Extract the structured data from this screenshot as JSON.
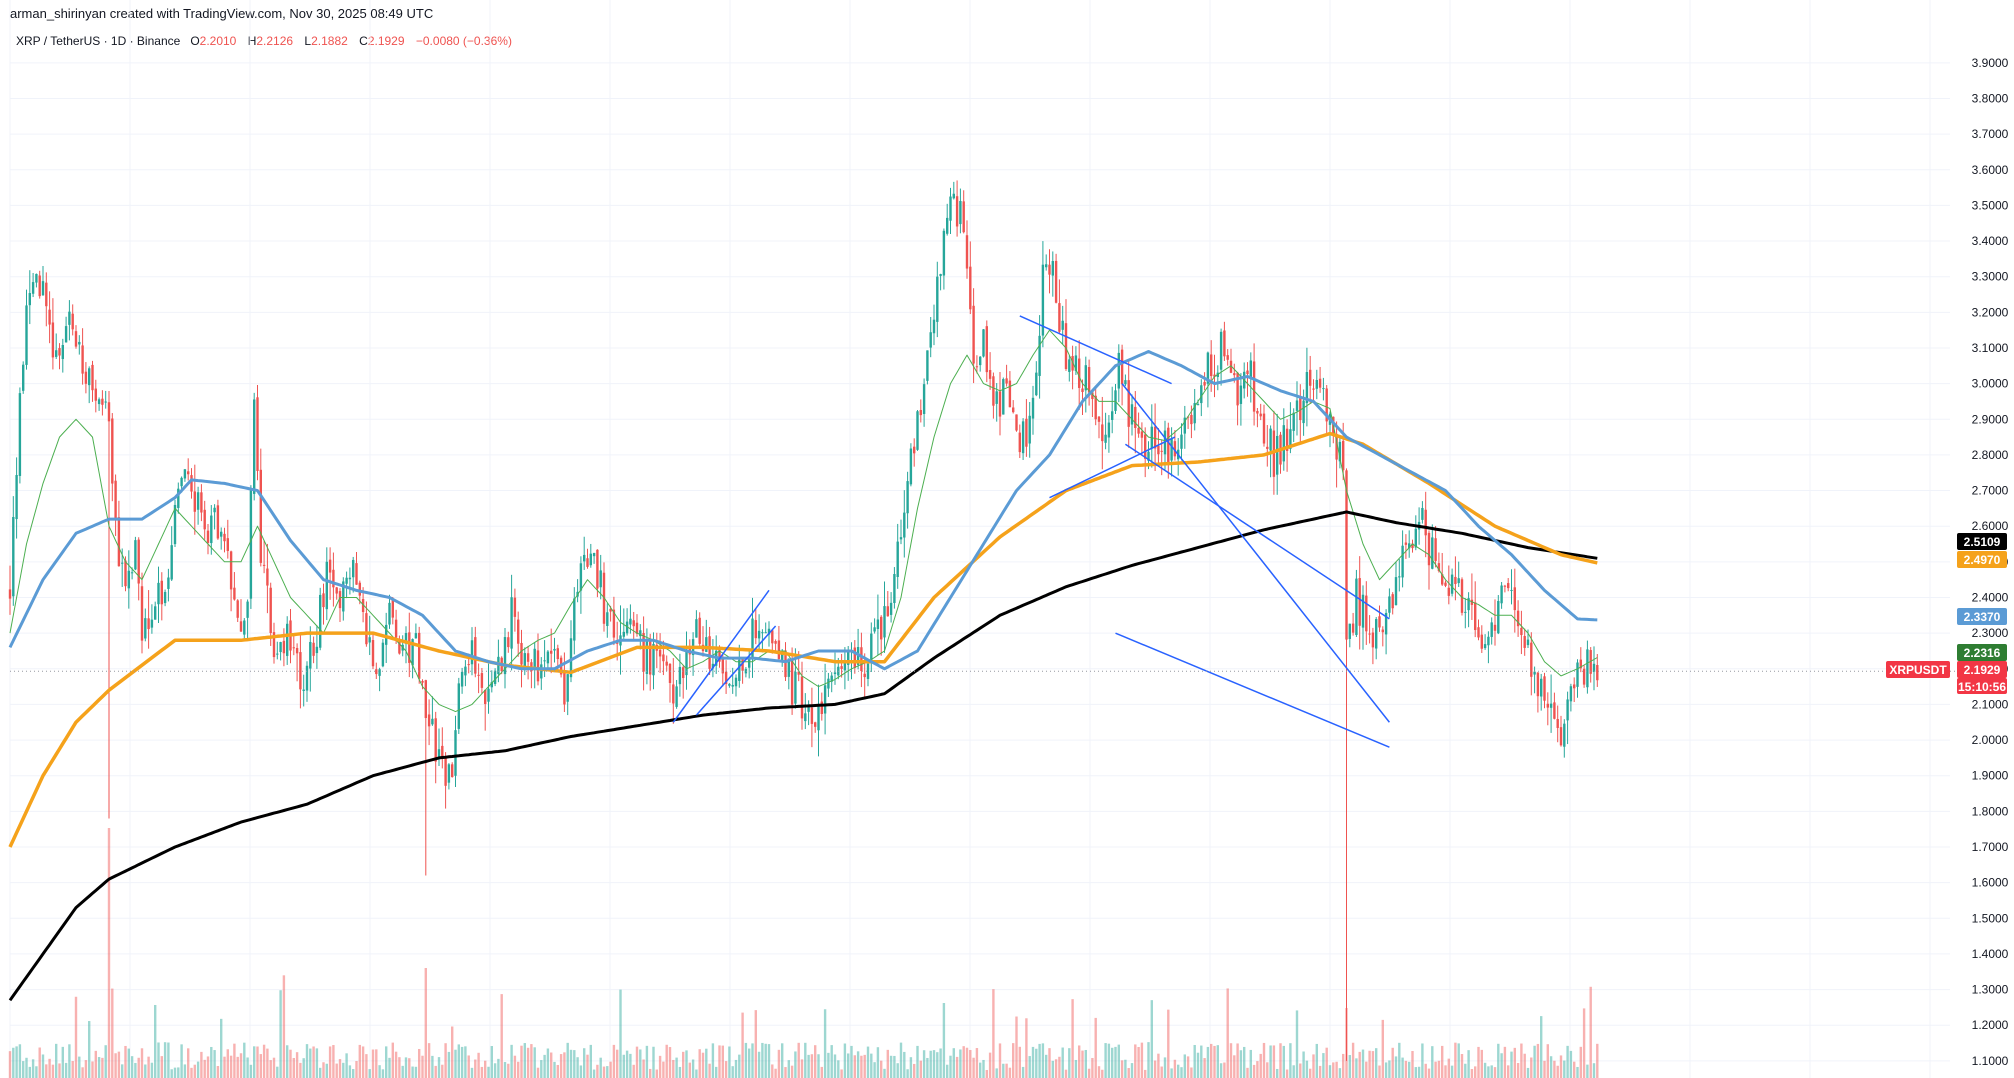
{
  "credit": "arman_shirinyan created with TradingView.com, Nov 30, 2025 08:49 UTC",
  "legend": {
    "symbol": "XRP / TetherUS · 1D · Binance",
    "open_label": "O",
    "open": "2.2010",
    "high_label": "H",
    "high": "2.2126",
    "low_label": "L",
    "low": "2.1882",
    "close_label": "C",
    "close": "2.1929",
    "change": "−0.0080 (−0.36%)"
  },
  "colors": {
    "up": "#26a69a",
    "down": "#ef5350",
    "ma_short": "#4caf50",
    "ma_mid": "#5b9bd5",
    "ma_long": "#f5a21b",
    "ma_200": "#000000",
    "trendline": "#2962ff",
    "grid": "#f0f3fa",
    "axis_text": "#131722"
  },
  "chart_data": {
    "type": "candlestick",
    "symbol": "XRPUSDT",
    "ylim": [
      1.08,
      3.95
    ],
    "y_ticks": [
      "3.9000",
      "3.8000",
      "3.7000",
      "3.6000",
      "3.5000",
      "3.4000",
      "3.3000",
      "3.2000",
      "3.1000",
      "3.0000",
      "2.9000",
      "2.8000",
      "2.7000",
      "2.6000",
      "2.5000",
      "2.4000",
      "2.3000",
      "2.2000",
      "2.1000",
      "2.0000",
      "1.9000",
      "1.8000",
      "1.7000",
      "1.6000",
      "1.5000",
      "1.4000",
      "1.3000",
      "1.2000",
      "1.1000"
    ],
    "price_anchors": [
      [
        0,
        2.42
      ],
      [
        3,
        2.95
      ],
      [
        6,
        3.28
      ],
      [
        10,
        3.25
      ],
      [
        14,
        3.05
      ],
      [
        18,
        3.18
      ],
      [
        22,
        3.05
      ],
      [
        26,
        2.95
      ],
      [
        30,
        2.9
      ],
      [
        32,
        2.6
      ],
      [
        35,
        2.4
      ],
      [
        38,
        2.55
      ],
      [
        40,
        2.3
      ],
      [
        44,
        2.35
      ],
      [
        48,
        2.5
      ],
      [
        52,
        2.75
      ],
      [
        56,
        2.7
      ],
      [
        60,
        2.55
      ],
      [
        64,
        2.62
      ],
      [
        67,
        2.45
      ],
      [
        70,
        2.3
      ],
      [
        72,
        2.4
      ],
      [
        74,
        2.95
      ],
      [
        76,
        2.55
      ],
      [
        80,
        2.25
      ],
      [
        84,
        2.3
      ],
      [
        88,
        2.18
      ],
      [
        92,
        2.25
      ],
      [
        96,
        2.45
      ],
      [
        100,
        2.4
      ],
      [
        104,
        2.5
      ],
      [
        108,
        2.3
      ],
      [
        112,
        2.18
      ],
      [
        115,
        2.4
      ],
      [
        118,
        2.2
      ],
      [
        122,
        2.3
      ],
      [
        126,
        2.1
      ],
      [
        130,
        1.95
      ],
      [
        134,
        1.9
      ],
      [
        136,
        2.15
      ],
      [
        140,
        2.25
      ],
      [
        144,
        2.1
      ],
      [
        148,
        2.2
      ],
      [
        152,
        2.35
      ],
      [
        156,
        2.25
      ],
      [
        160,
        2.2
      ],
      [
        164,
        2.3
      ],
      [
        168,
        2.15
      ],
      [
        172,
        2.4
      ],
      [
        176,
        2.55
      ],
      [
        180,
        2.38
      ],
      [
        184,
        2.3
      ],
      [
        188,
        2.35
      ],
      [
        192,
        2.25
      ],
      [
        196,
        2.22
      ],
      [
        200,
        2.15
      ],
      [
        204,
        2.2
      ],
      [
        208,
        2.3
      ],
      [
        212,
        2.25
      ],
      [
        216,
        2.22
      ],
      [
        220,
        2.15
      ],
      [
        224,
        2.25
      ],
      [
        228,
        2.35
      ],
      [
        232,
        2.25
      ],
      [
        236,
        2.18
      ],
      [
        240,
        2.12
      ],
      [
        244,
        2.05
      ],
      [
        248,
        2.18
      ],
      [
        252,
        2.25
      ],
      [
        256,
        2.2
      ],
      [
        260,
        2.25
      ],
      [
        264,
        2.3
      ],
      [
        268,
        2.45
      ],
      [
        272,
        2.75
      ],
      [
        276,
        2.95
      ],
      [
        280,
        3.15
      ],
      [
        283,
        3.45
      ],
      [
        286,
        3.55
      ],
      [
        289,
        3.4
      ],
      [
        292,
        3.05
      ],
      [
        295,
        3.1
      ],
      [
        298,
        2.95
      ],
      [
        302,
        2.95
      ],
      [
        306,
        2.8
      ],
      [
        310,
        2.95
      ],
      [
        313,
        3.3
      ],
      [
        316,
        3.3
      ],
      [
        320,
        3.1
      ],
      [
        324,
        3.05
      ],
      [
        328,
        2.95
      ],
      [
        332,
        2.88
      ],
      [
        336,
        3.05
      ],
      [
        340,
        2.9
      ],
      [
        344,
        2.82
      ],
      [
        348,
        2.85
      ],
      [
        352,
        2.82
      ],
      [
        356,
        2.85
      ],
      [
        360,
        2.95
      ],
      [
        364,
        3.05
      ],
      [
        368,
        3.1
      ],
      [
        372,
        2.98
      ],
      [
        376,
        3.0
      ],
      [
        380,
        2.85
      ],
      [
        384,
        2.8
      ],
      [
        388,
        2.85
      ],
      [
        392,
        2.95
      ],
      [
        396,
        3.0
      ],
      [
        400,
        2.9
      ],
      [
        404,
        2.82
      ],
      [
        405,
        2.3
      ],
      [
        408,
        2.4
      ],
      [
        412,
        2.3
      ],
      [
        416,
        2.35
      ],
      [
        420,
        2.45
      ],
      [
        424,
        2.55
      ],
      [
        428,
        2.6
      ],
      [
        432,
        2.5
      ],
      [
        436,
        2.45
      ],
      [
        440,
        2.4
      ],
      [
        444,
        2.3
      ],
      [
        448,
        2.25
      ],
      [
        452,
        2.45
      ],
      [
        456,
        2.38
      ],
      [
        460,
        2.25
      ],
      [
        464,
        2.15
      ],
      [
        468,
        2.05
      ],
      [
        470,
        1.95
      ],
      [
        472,
        2.1
      ],
      [
        475,
        2.2
      ],
      [
        478,
        2.21
      ],
      [
        481,
        2.19
      ]
    ],
    "special_wicks": [
      {
        "i": 405,
        "low": 1.1,
        "high": 2.65
      },
      {
        "i": 30,
        "low": 1.78,
        "high": 2.6
      },
      {
        "i": 126,
        "low": 1.62,
        "high": 2.05
      }
    ],
    "ma_200": [
      [
        0,
        1.27
      ],
      [
        10,
        1.4
      ],
      [
        20,
        1.53
      ],
      [
        30,
        1.61
      ],
      [
        50,
        1.7
      ],
      [
        70,
        1.77
      ],
      [
        90,
        1.82
      ],
      [
        110,
        1.9
      ],
      [
        130,
        1.95
      ],
      [
        150,
        1.97
      ],
      [
        170,
        2.01
      ],
      [
        190,
        2.04
      ],
      [
        210,
        2.07
      ],
      [
        230,
        2.09
      ],
      [
        250,
        2.1
      ],
      [
        265,
        2.13
      ],
      [
        280,
        2.23
      ],
      [
        300,
        2.35
      ],
      [
        320,
        2.43
      ],
      [
        340,
        2.49
      ],
      [
        360,
        2.54
      ],
      [
        380,
        2.59
      ],
      [
        400,
        2.63
      ],
      [
        405,
        2.64
      ],
      [
        420,
        2.61
      ],
      [
        440,
        2.58
      ],
      [
        460,
        2.54
      ],
      [
        481,
        2.51
      ]
    ],
    "ma_long": [
      [
        0,
        1.7
      ],
      [
        10,
        1.9
      ],
      [
        20,
        2.05
      ],
      [
        30,
        2.14
      ],
      [
        50,
        2.28
      ],
      [
        70,
        2.28
      ],
      [
        90,
        2.3
      ],
      [
        110,
        2.3
      ],
      [
        130,
        2.25
      ],
      [
        150,
        2.21
      ],
      [
        170,
        2.19
      ],
      [
        190,
        2.26
      ],
      [
        210,
        2.26
      ],
      [
        230,
        2.25
      ],
      [
        250,
        2.22
      ],
      [
        265,
        2.22
      ],
      [
        280,
        2.4
      ],
      [
        300,
        2.57
      ],
      [
        320,
        2.7
      ],
      [
        340,
        2.77
      ],
      [
        360,
        2.78
      ],
      [
        380,
        2.8
      ],
      [
        400,
        2.86
      ],
      [
        410,
        2.83
      ],
      [
        430,
        2.72
      ],
      [
        450,
        2.6
      ],
      [
        470,
        2.52
      ],
      [
        481,
        2.497
      ]
    ],
    "ma_mid": [
      [
        0,
        2.26
      ],
      [
        10,
        2.45
      ],
      [
        20,
        2.58
      ],
      [
        30,
        2.62
      ],
      [
        40,
        2.62
      ],
      [
        50,
        2.68
      ],
      [
        55,
        2.73
      ],
      [
        65,
        2.72
      ],
      [
        75,
        2.7
      ],
      [
        85,
        2.56
      ],
      [
        95,
        2.45
      ],
      [
        105,
        2.42
      ],
      [
        115,
        2.4
      ],
      [
        125,
        2.35
      ],
      [
        135,
        2.25
      ],
      [
        145,
        2.22
      ],
      [
        155,
        2.2
      ],
      [
        165,
        2.2
      ],
      [
        175,
        2.25
      ],
      [
        185,
        2.28
      ],
      [
        195,
        2.28
      ],
      [
        205,
        2.25
      ],
      [
        215,
        2.23
      ],
      [
        225,
        2.23
      ],
      [
        235,
        2.22
      ],
      [
        245,
        2.25
      ],
      [
        255,
        2.25
      ],
      [
        265,
        2.2
      ],
      [
        275,
        2.25
      ],
      [
        285,
        2.4
      ],
      [
        295,
        2.55
      ],
      [
        305,
        2.7
      ],
      [
        315,
        2.8
      ],
      [
        325,
        2.95
      ],
      [
        335,
        3.05
      ],
      [
        345,
        3.09
      ],
      [
        355,
        3.05
      ],
      [
        365,
        3.0
      ],
      [
        375,
        3.02
      ],
      [
        385,
        2.98
      ],
      [
        395,
        2.95
      ],
      [
        405,
        2.85
      ],
      [
        415,
        2.8
      ],
      [
        425,
        2.75
      ],
      [
        435,
        2.7
      ],
      [
        445,
        2.6
      ],
      [
        455,
        2.52
      ],
      [
        465,
        2.42
      ],
      [
        475,
        2.34
      ],
      [
        481,
        2.337
      ]
    ],
    "ma_short": [
      [
        0,
        2.3
      ],
      [
        5,
        2.55
      ],
      [
        10,
        2.72
      ],
      [
        15,
        2.85
      ],
      [
        20,
        2.9
      ],
      [
        25,
        2.85
      ],
      [
        30,
        2.6
      ],
      [
        35,
        2.5
      ],
      [
        40,
        2.45
      ],
      [
        45,
        2.55
      ],
      [
        50,
        2.65
      ],
      [
        55,
        2.6
      ],
      [
        60,
        2.55
      ],
      [
        65,
        2.5
      ],
      [
        70,
        2.5
      ],
      [
        75,
        2.6
      ],
      [
        80,
        2.5
      ],
      [
        85,
        2.4
      ],
      [
        90,
        2.35
      ],
      [
        95,
        2.3
      ],
      [
        100,
        2.4
      ],
      [
        105,
        2.4
      ],
      [
        110,
        2.35
      ],
      [
        115,
        2.3
      ],
      [
        120,
        2.25
      ],
      [
        125,
        2.15
      ],
      [
        130,
        2.1
      ],
      [
        135,
        2.08
      ],
      [
        140,
        2.1
      ],
      [
        145,
        2.15
      ],
      [
        150,
        2.2
      ],
      [
        155,
        2.25
      ],
      [
        160,
        2.28
      ],
      [
        165,
        2.3
      ],
      [
        170,
        2.38
      ],
      [
        175,
        2.45
      ],
      [
        180,
        2.4
      ],
      [
        185,
        2.33
      ],
      [
        190,
        2.3
      ],
      [
        195,
        2.28
      ],
      [
        200,
        2.25
      ],
      [
        205,
        2.2
      ],
      [
        210,
        2.22
      ],
      [
        215,
        2.25
      ],
      [
        220,
        2.22
      ],
      [
        225,
        2.22
      ],
      [
        230,
        2.25
      ],
      [
        235,
        2.25
      ],
      [
        240,
        2.18
      ],
      [
        245,
        2.15
      ],
      [
        250,
        2.17
      ],
      [
        255,
        2.2
      ],
      [
        260,
        2.22
      ],
      [
        265,
        2.25
      ],
      [
        270,
        2.4
      ],
      [
        275,
        2.65
      ],
      [
        280,
        2.85
      ],
      [
        285,
        3.0
      ],
      [
        290,
        3.08
      ],
      [
        295,
        3.0
      ],
      [
        300,
        2.98
      ],
      [
        305,
        3.0
      ],
      [
        310,
        3.08
      ],
      [
        315,
        3.15
      ],
      [
        320,
        3.1
      ],
      [
        325,
        3.0
      ],
      [
        330,
        2.95
      ],
      [
        335,
        2.95
      ],
      [
        340,
        2.9
      ],
      [
        345,
        2.85
      ],
      [
        350,
        2.84
      ],
      [
        355,
        2.88
      ],
      [
        360,
        2.95
      ],
      [
        365,
        3.02
      ],
      [
        370,
        3.05
      ],
      [
        375,
        3.0
      ],
      [
        380,
        2.95
      ],
      [
        385,
        2.9
      ],
      [
        390,
        2.92
      ],
      [
        395,
        2.95
      ],
      [
        400,
        2.93
      ],
      [
        405,
        2.7
      ],
      [
        410,
        2.55
      ],
      [
        415,
        2.45
      ],
      [
        420,
        2.5
      ],
      [
        425,
        2.55
      ],
      [
        430,
        2.52
      ],
      [
        435,
        2.45
      ],
      [
        440,
        2.4
      ],
      [
        445,
        2.38
      ],
      [
        450,
        2.35
      ],
      [
        455,
        2.35
      ],
      [
        460,
        2.3
      ],
      [
        465,
        2.22
      ],
      [
        470,
        2.18
      ],
      [
        475,
        2.2
      ],
      [
        481,
        2.2316
      ]
    ],
    "trendlines": [
      {
        "from": [
          201,
          2.05
        ],
        "to": [
          230,
          2.42
        ]
      },
      {
        "from": [
          208,
          2.07
        ],
        "to": [
          232,
          2.32
        ]
      },
      {
        "from": [
          306,
          3.19
        ],
        "to": [
          352,
          3.0
        ]
      },
      {
        "from": [
          315,
          2.68
        ],
        "to": [
          353,
          2.85
        ]
      },
      {
        "from": [
          338,
          2.83
        ],
        "to": [
          418,
          2.34
        ]
      },
      {
        "from": [
          337,
          3.0
        ],
        "to": [
          418,
          2.05
        ]
      },
      {
        "from": [
          335,
          2.3
        ],
        "to": [
          418,
          1.98
        ]
      }
    ],
    "price_tags": [
      {
        "value": 2.5109,
        "text": "2.5109",
        "color": "#000000"
      },
      {
        "value": 2.497,
        "text": "2.4970",
        "color": "#f5a21b"
      },
      {
        "value": 2.337,
        "text": "2.3370",
        "color": "#5b9bd5"
      },
      {
        "value": 2.2316,
        "text": "2.2316",
        "color": "#2e7d32"
      },
      {
        "value": 2.1929,
        "text": "2.1929",
        "color": "#f23645"
      }
    ],
    "last_price": {
      "value": 2.1929,
      "symbol_label": "XRPUSDT",
      "countdown": "15:10:56"
    }
  }
}
